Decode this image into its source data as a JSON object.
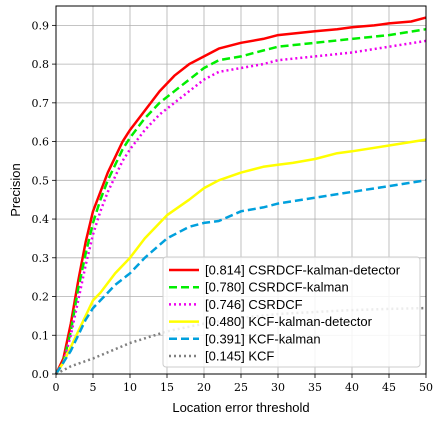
{
  "chart_data": {
    "type": "line",
    "xlabel": "Location error threshold",
    "ylabel": "Precision",
    "xlim": [
      0,
      50
    ],
    "ylim": [
      0,
      0.95
    ],
    "xticks": [
      0,
      5,
      10,
      15,
      20,
      25,
      30,
      35,
      40,
      45,
      50
    ],
    "yticks": [
      0.0,
      0.1,
      0.2,
      0.3,
      0.4,
      0.5,
      0.6,
      0.7,
      0.8,
      0.9
    ],
    "grid": true,
    "legend_position": "bottom-right",
    "series": [
      {
        "name": "[0.814] CSRDCF-kalman-detector",
        "color": "#ff0000",
        "dash": "solid",
        "x": [
          0,
          1,
          2,
          3,
          4,
          5,
          6,
          7,
          8,
          9,
          10,
          12,
          14,
          16,
          18,
          20,
          21,
          22,
          25,
          28,
          30,
          35,
          38,
          40,
          43,
          45,
          48,
          50
        ],
        "y": [
          0,
          0.04,
          0.13,
          0.24,
          0.34,
          0.42,
          0.47,
          0.52,
          0.56,
          0.6,
          0.63,
          0.68,
          0.73,
          0.77,
          0.8,
          0.82,
          0.83,
          0.84,
          0.855,
          0.865,
          0.875,
          0.885,
          0.89,
          0.895,
          0.9,
          0.905,
          0.91,
          0.92
        ]
      },
      {
        "name": "[0.780] CSRDCF-kalman",
        "color": "#00ee00",
        "dash": "dashed",
        "x": [
          0,
          1,
          2,
          3,
          4,
          5,
          6,
          7,
          8,
          9,
          10,
          12,
          14,
          16,
          18,
          20,
          21,
          22,
          25,
          28,
          30,
          35,
          40,
          45,
          50
        ],
        "y": [
          0,
          0.03,
          0.11,
          0.22,
          0.31,
          0.39,
          0.45,
          0.5,
          0.54,
          0.58,
          0.61,
          0.66,
          0.7,
          0.73,
          0.76,
          0.79,
          0.8,
          0.81,
          0.82,
          0.835,
          0.845,
          0.855,
          0.865,
          0.875,
          0.89
        ]
      },
      {
        "name": "[0.746] CSRDCF",
        "color": "#ee00ee",
        "dash": "dotted",
        "x": [
          0,
          1,
          2,
          3,
          4,
          5,
          6,
          7,
          8,
          9,
          10,
          12,
          14,
          16,
          18,
          20,
          21,
          22,
          25,
          28,
          30,
          35,
          40,
          45,
          50
        ],
        "y": [
          0,
          0.03,
          0.1,
          0.19,
          0.28,
          0.36,
          0.42,
          0.47,
          0.51,
          0.55,
          0.58,
          0.63,
          0.67,
          0.7,
          0.73,
          0.76,
          0.77,
          0.78,
          0.79,
          0.8,
          0.81,
          0.82,
          0.83,
          0.845,
          0.86
        ]
      },
      {
        "name": "[0.480] KCF-kalman-detector",
        "color": "#ffff00",
        "dash": "solid",
        "x": [
          0,
          1,
          2,
          3,
          4,
          5,
          6,
          8,
          10,
          12,
          15,
          18,
          20,
          22,
          25,
          28,
          30,
          32,
          35,
          38,
          40,
          45,
          50
        ],
        "y": [
          0,
          0.03,
          0.07,
          0.11,
          0.15,
          0.19,
          0.21,
          0.26,
          0.3,
          0.35,
          0.41,
          0.45,
          0.48,
          0.5,
          0.52,
          0.535,
          0.54,
          0.545,
          0.555,
          0.57,
          0.575,
          0.59,
          0.605
        ]
      },
      {
        "name": "[0.391] KCF-kalman",
        "color": "#00a0dd",
        "dash": "dashed",
        "x": [
          0,
          1,
          2,
          3,
          4,
          5,
          6,
          8,
          10,
          12,
          15,
          18,
          20,
          22,
          25,
          28,
          30,
          35,
          40,
          45,
          50
        ],
        "y": [
          0,
          0.03,
          0.06,
          0.1,
          0.14,
          0.17,
          0.19,
          0.23,
          0.26,
          0.3,
          0.35,
          0.38,
          0.39,
          0.395,
          0.42,
          0.43,
          0.44,
          0.455,
          0.47,
          0.485,
          0.5
        ]
      },
      {
        "name": "[0.145] KCF",
        "color": "#808080",
        "dash": "dotted",
        "x": [
          0,
          2,
          5,
          10,
          15,
          20,
          25,
          30,
          35,
          40,
          45,
          50
        ],
        "y": [
          0,
          0.02,
          0.04,
          0.08,
          0.11,
          0.13,
          0.145,
          0.155,
          0.16,
          0.165,
          0.168,
          0.17
        ]
      }
    ]
  }
}
